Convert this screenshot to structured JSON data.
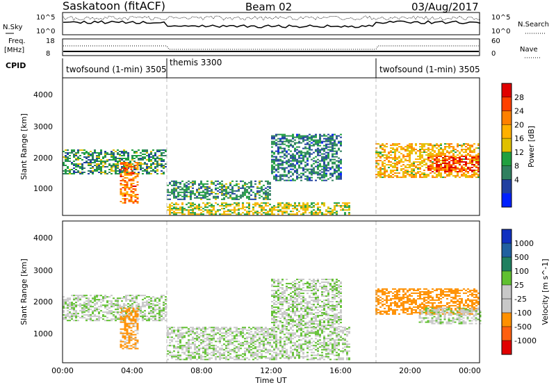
{
  "header": {
    "station": "Saskatoon (fitACF)",
    "beam": "Beam 02",
    "date": "03/Aug/2017"
  },
  "noise_panel": {
    "left_label": "N.Sky",
    "right_label": "N.Search",
    "left_ticks": [
      "10^5",
      "10^0"
    ],
    "right_ticks": [
      "10^5",
      "10^0"
    ]
  },
  "freq_panel": {
    "left_label_1": "Freq.",
    "left_label_2": "[MHz]",
    "right_label": "Nave",
    "left_ticks": [
      "18",
      "8"
    ],
    "right_ticks": [
      "60",
      "0"
    ]
  },
  "cpid": {
    "label": "CPID",
    "segments": [
      {
        "name": "twofsound (1-min) 3505",
        "start_hour": 0,
        "end_hour": 6
      },
      {
        "name": "themis 3300",
        "start_hour": 6,
        "end_hour": 18
      },
      {
        "name": "twofsound (1-min) 3505",
        "start_hour": 18,
        "end_hour": 24
      }
    ]
  },
  "power_panel": {
    "ylabel": "Slant Range [km]",
    "cbar_label": "Power [dB]",
    "cbar_ticks": [
      "28",
      "24",
      "20",
      "16",
      "12",
      "8",
      "4"
    ],
    "cbar_colors": [
      "#e00000",
      "#ff4000",
      "#ff8000",
      "#ffb000",
      "#e0c000",
      "#20a040",
      "#308060",
      "#2040a0",
      "#0020ff"
    ]
  },
  "velocity_panel": {
    "ylabel": "Slant Range [km]",
    "cbar_label": "Velocity [m s^-1]",
    "cbar_ticks": [
      "1000",
      "500",
      "100",
      "25",
      "-25",
      "-100",
      "-500",
      "-1000"
    ],
    "cbar_colors": [
      "#1030c0",
      "#2060a0",
      "#208060",
      "#60c030",
      "#c8c8c8",
      "#c8c8c8",
      "#ff9000",
      "#ff6010",
      "#e00000"
    ]
  },
  "x_axis": {
    "label": "Time UT",
    "ticks": [
      "00:00",
      "04:00",
      "08:00",
      "12:00",
      "16:00",
      "20:00",
      "00:00"
    ]
  },
  "y_axis_ticks": [
    "4000",
    "3000",
    "2000",
    "1000"
  ],
  "chart_data": {
    "type": "heatmap",
    "title": "Saskatoon (fitACF) Beam 02 03/Aug/2017",
    "xlabel": "Time UT",
    "ylabel": "Slant Range [km]",
    "xlim_hours": [
      0,
      24
    ],
    "ylim_km": [
      180,
      4600
    ],
    "panels": [
      {
        "name": "Power",
        "unit": "dB",
        "colorbar_range": [
          0,
          30
        ],
        "regions": [
          {
            "t0": 0.0,
            "t1": 6.0,
            "r0": 1500,
            "r1": 2300,
            "value": 10
          },
          {
            "t0": 3.3,
            "t1": 4.3,
            "r0": 600,
            "r1": 1900,
            "value": 22
          },
          {
            "t0": 6.0,
            "t1": 12.0,
            "r0": 700,
            "r1": 1300,
            "value": 9
          },
          {
            "t0": 6.0,
            "t1": 16.5,
            "r0": 200,
            "r1": 600,
            "value": 15
          },
          {
            "t0": 12.0,
            "t1": 16.0,
            "r0": 1300,
            "r1": 2800,
            "value": 8
          },
          {
            "t0": 18.0,
            "t1": 24.0,
            "r0": 1400,
            "r1": 2500,
            "value": 18
          },
          {
            "t0": 21.0,
            "t1": 24.0,
            "r0": 1600,
            "r1": 2100,
            "value": 26
          }
        ]
      },
      {
        "name": "Velocity",
        "unit": "m s^-1",
        "colorbar_range": [
          -1000,
          1000
        ],
        "regions": [
          {
            "t0": 0.0,
            "t1": 6.0,
            "r0": 1500,
            "r1": 2300,
            "value": 0
          },
          {
            "t0": 3.3,
            "t1": 4.3,
            "r0": 600,
            "r1": 1900,
            "value": -150
          },
          {
            "t0": 6.0,
            "t1": 16.5,
            "r0": 300,
            "r1": 1300,
            "value": 0
          },
          {
            "t0": 12.0,
            "t1": 16.0,
            "r0": 1300,
            "r1": 2800,
            "value": 0
          },
          {
            "t0": 18.0,
            "t1": 24.0,
            "r0": 1700,
            "r1": 2500,
            "value": -300
          },
          {
            "t0": 20.5,
            "t1": 24.0,
            "r0": 1400,
            "r1": 1900,
            "value": 0
          }
        ]
      }
    ]
  }
}
